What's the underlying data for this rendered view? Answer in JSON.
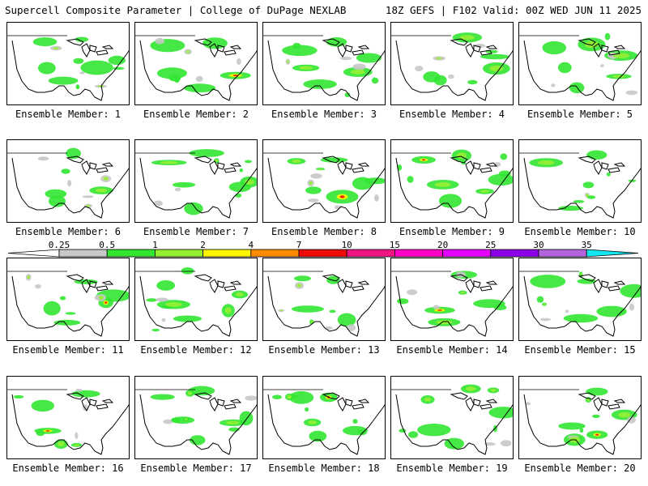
{
  "header": {
    "title": "Supercell Composite Parameter | College of DuPage NEXLAB",
    "run_info": "18Z GEFS | F102 Valid: 00Z WED JUN 11 2025"
  },
  "label_prefix": "Ensemble Member: ",
  "members": [
    {
      "id": 1,
      "label": "Ensemble Member: 1"
    },
    {
      "id": 2,
      "label": "Ensemble Member: 2"
    },
    {
      "id": 3,
      "label": "Ensemble Member: 3"
    },
    {
      "id": 4,
      "label": "Ensemble Member: 4"
    },
    {
      "id": 5,
      "label": "Ensemble Member: 5"
    },
    {
      "id": 6,
      "label": "Ensemble Member: 6"
    },
    {
      "id": 7,
      "label": "Ensemble Member: 7"
    },
    {
      "id": 8,
      "label": "Ensemble Member: 8"
    },
    {
      "id": 9,
      "label": "Ensemble Member: 9"
    },
    {
      "id": 10,
      "label": "Ensemble Member: 10"
    },
    {
      "id": 11,
      "label": "Ensemble Member: 11"
    },
    {
      "id": 12,
      "label": "Ensemble Member: 12"
    },
    {
      "id": 13,
      "label": "Ensemble Member: 13"
    },
    {
      "id": 14,
      "label": "Ensemble Member: 14"
    },
    {
      "id": 15,
      "label": "Ensemble Member: 15"
    },
    {
      "id": 16,
      "label": "Ensemble Member: 16"
    },
    {
      "id": 17,
      "label": "Ensemble Member: 17"
    },
    {
      "id": 18,
      "label": "Ensemble Member: 18"
    },
    {
      "id": 19,
      "label": "Ensemble Member: 19"
    },
    {
      "id": 20,
      "label": "Ensemble Member: 20"
    }
  ],
  "colorbar": {
    "ticks": [
      "0.25",
      "0.5",
      "1",
      "2",
      "4",
      "7",
      "10",
      "15",
      "20",
      "25",
      "30",
      "35"
    ],
    "colors": [
      "#ffffff",
      "#c8c8c8",
      "#32e632",
      "#96f032",
      "#fff500",
      "#ff8c00",
      "#f00a0a",
      "#f01482",
      "#ff00c8",
      "#e600ff",
      "#8c00e6",
      "#b464dc",
      "#14e6f0"
    ]
  }
}
